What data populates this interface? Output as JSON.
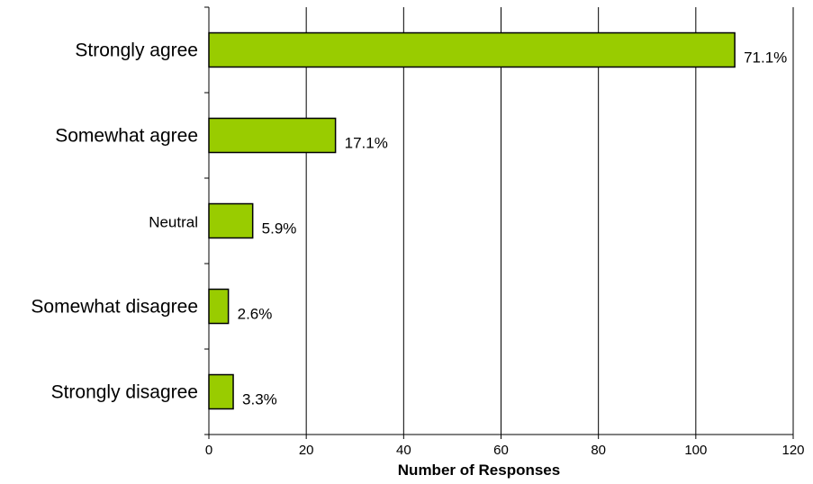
{
  "chart_data": {
    "type": "bar",
    "orientation": "horizontal",
    "categories": [
      "Strongly agree",
      "Somewhat agree",
      "Neutral",
      "Somewhat disagree",
      "Strongly disagree"
    ],
    "values": [
      108,
      26,
      9,
      4,
      5
    ],
    "data_labels": [
      "71.1%",
      "17.1%",
      "5.9%",
      "2.6%",
      "3.3%"
    ],
    "title": "",
    "xlabel": "Number of Responses",
    "ylabel": "",
    "xlim": [
      0,
      120
    ],
    "xticks": [
      "0",
      "20",
      "40",
      "60",
      "80",
      "100",
      "120"
    ],
    "grid": "vertical",
    "legend": "none",
    "bar_color": "#99cc00",
    "bar_edge_color": "#000000"
  }
}
